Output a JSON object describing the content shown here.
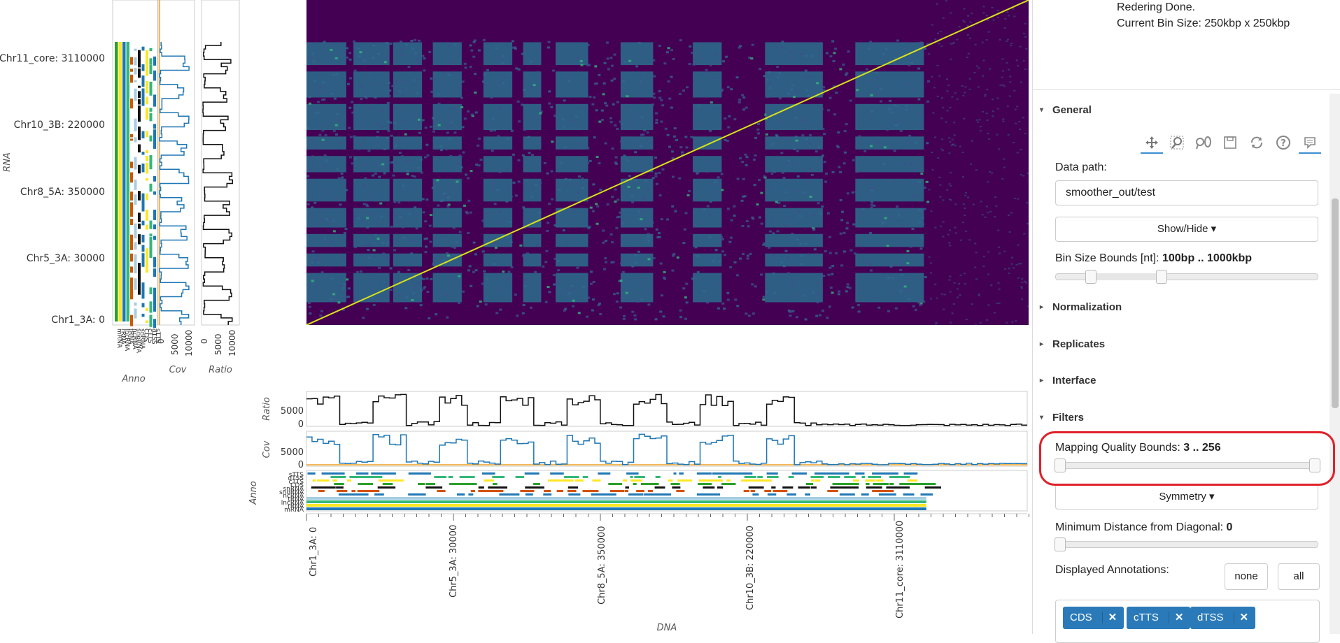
{
  "status": {
    "line1": "Redering Done.",
    "line2": "Current Bin Size: 250kbp x 250kbp"
  },
  "heatmap": {
    "y_ticks": [
      "Chr11_core: 3110000",
      "Chr10_3B: 220000",
      "Chr8_5A: 350000",
      "Chr5_3A: 30000",
      "Chr1_3A: 0"
    ],
    "x_ticks": [
      "Chr1_3A: 0",
      "Chr5_3A: 30000",
      "Chr8_5A: 350000",
      "Chr10_3B: 220000",
      "Chr11_core: 3110000"
    ],
    "y_axis_label": "RNA",
    "x_axis_label": "DNA",
    "colors": {
      "background": "#440154",
      "block": "#2c6e8e",
      "diagonal": "#d8e219"
    }
  },
  "left_tracks": {
    "anno_label": "Anno",
    "cov_label": "Cov",
    "ratio_label": "Ratio",
    "cov_ticks": [
      "0",
      "5000",
      "10000"
    ],
    "ratio_ticks": [
      "0",
      "5000",
      "10000"
    ],
    "anno_rows": [
      "mRNA",
      "rRNA",
      "lncRNA",
      "tRNA",
      "ncRNA",
      "snoRNA",
      "snRNA",
      "CDS",
      "cTTS",
      "dTSS",
      "sTTS"
    ]
  },
  "bottom_tracks": {
    "ratio_label": "Ratio",
    "cov_label": "Cov",
    "anno_label": "Anno",
    "ratio_ticks": [
      "5000",
      "0"
    ],
    "cov_ticks": [
      "5000",
      "0"
    ],
    "anno_rows": [
      "sTTS",
      "dTSS",
      "cTTS",
      "CDS",
      "snRNA",
      "snoRNA",
      "ncRNA",
      "tRNA",
      "lncRNA",
      "rRNA",
      "mRNA"
    ]
  },
  "panel": {
    "general": "General",
    "data_path_label": "Data path:",
    "data_path_value": "smoother_out/test",
    "show_hide": "Show/Hide ▾",
    "bin_bounds_label": "Bin Size Bounds [nt]: ",
    "bin_bounds_value": "100bp .. 1000kbp",
    "normalization": "Normalization",
    "replicates": "Replicates",
    "interface": "Interface",
    "filters": "Filters",
    "mapq_label": "Mapping Quality Bounds: ",
    "mapq_value": "3 .. 256",
    "symmetry": "Symmetry ▾",
    "min_dist_label": "Minimum Distance from Diagonal: ",
    "min_dist_value": "0",
    "annotations_label": "Displayed Annotations:",
    "none_btn": "none",
    "all_btn": "all",
    "tags": [
      "CDS",
      "cTTS",
      "dTSS"
    ],
    "tag_close": "✕",
    "tri_closed": "▸",
    "tri_open": "▾",
    "accent": "#2a7ab9",
    "highlight": "#e0202a"
  },
  "toolbar": {
    "icons": [
      "pan-icon",
      "box-zoom-icon",
      "wheel-zoom-icon",
      "save-icon",
      "reset-icon",
      "help-icon",
      "hover-icon"
    ]
  }
}
